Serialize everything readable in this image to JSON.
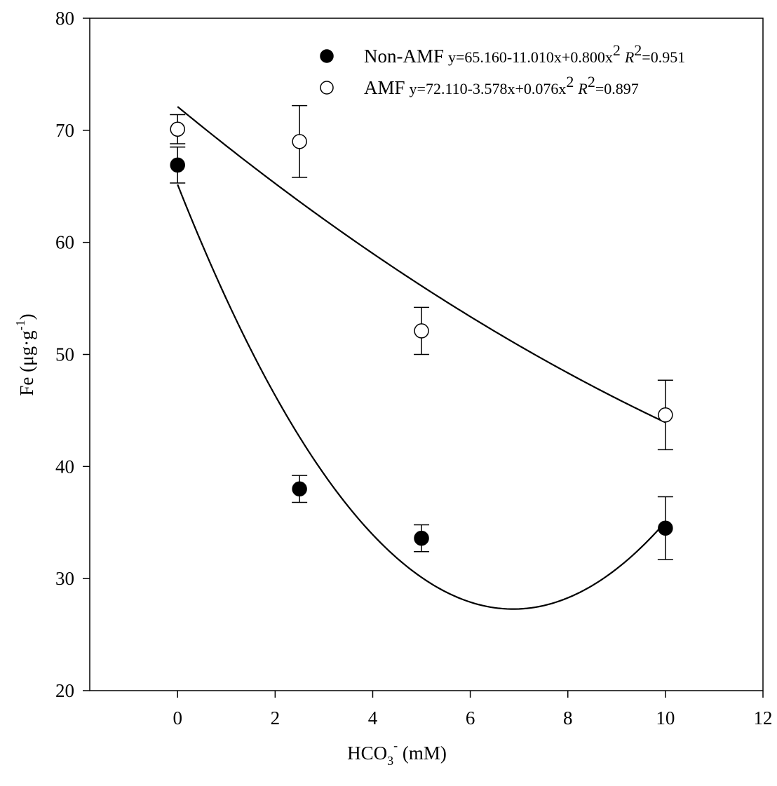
{
  "chart_data": {
    "type": "scatter",
    "xlim": [
      -1.8,
      12
    ],
    "ylim": [
      20,
      80
    ],
    "x_ticks": [
      0,
      2,
      4,
      6,
      8,
      10,
      12
    ],
    "y_ticks": [
      20,
      30,
      40,
      50,
      60,
      70,
      80
    ],
    "xlabel": {
      "base": "HCO",
      "sub": "3",
      "sup": "-",
      "rest": " (mM)"
    },
    "ylabel": {
      "base": "Fe (μg·g",
      "sup": "-1",
      "rest": ")"
    },
    "grid": false,
    "legend_position": "top-right",
    "series": [
      {
        "name": "Non-AMF",
        "marker": "filled-circle",
        "color": "#000000",
        "x": [
          0,
          2.5,
          5,
          10
        ],
        "y": [
          66.9,
          38.0,
          33.6,
          34.5
        ],
        "error": [
          1.6,
          1.2,
          1.2,
          2.8
        ],
        "fit": {
          "a": 65.16,
          "b": -11.01,
          "c": 0.8,
          "x_range": [
            0,
            10
          ]
        },
        "equation": {
          "eq": "y=65.160-11.010x+0.800x",
          "eq_sup": "2",
          "r_label": "R",
          "r_sup": "2",
          "r_value": "=0.951"
        }
      },
      {
        "name": "AMF",
        "marker": "open-circle",
        "color": "#000000",
        "x": [
          0,
          2.5,
          5,
          10
        ],
        "y": [
          70.1,
          69.0,
          52.1,
          44.6
        ],
        "error": [
          1.3,
          3.2,
          2.1,
          3.1
        ],
        "fit": {
          "a": 72.11,
          "b": -3.578,
          "c": 0.076,
          "x_range": [
            0,
            10
          ]
        },
        "equation": {
          "eq": "y=72.110-3.578x+0.076x",
          "eq_sup": "2",
          "r_label": "R",
          "r_sup": "2",
          "r_value": "=0.897"
        }
      }
    ]
  }
}
